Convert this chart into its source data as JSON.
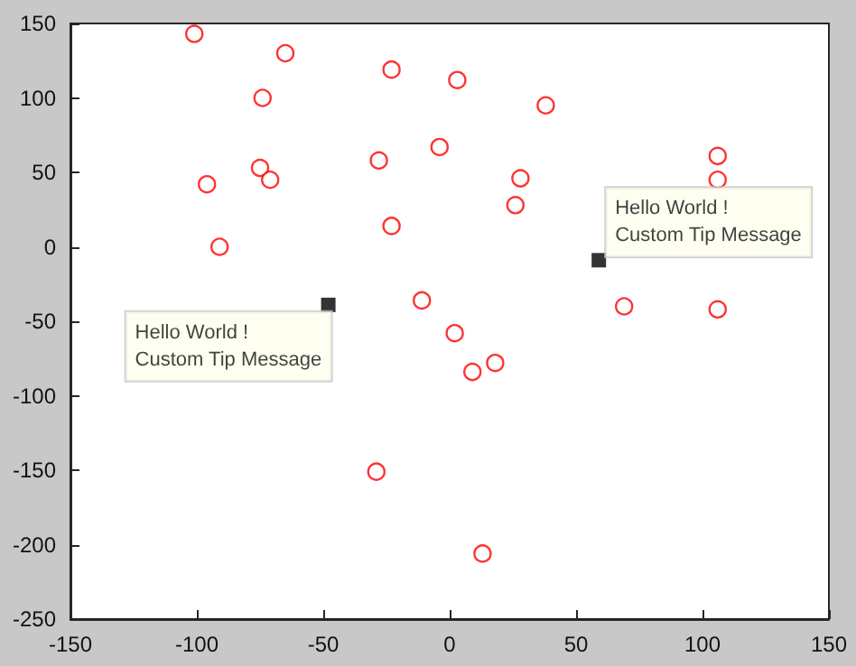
{
  "chart_data": {
    "type": "scatter",
    "series": [
      {
        "color": "#ff0000",
        "marker": "circle",
        "x": [
          -101,
          -65,
          -23,
          3,
          38,
          -74,
          -4,
          -28,
          -75,
          -96,
          -71,
          28,
          26,
          106,
          106,
          -23,
          -91,
          -11,
          69,
          106,
          2,
          9,
          18,
          -29,
          13
        ],
        "values": [
          143,
          130,
          119,
          112,
          95,
          100,
          67,
          58,
          53,
          42,
          45,
          46,
          28,
          61,
          45,
          14,
          0,
          -36,
          -40,
          -42,
          -58,
          -84,
          -78,
          -151,
          -206
        ]
      },
      {
        "color": "#000000",
        "marker": "square",
        "x": [
          -48,
          59
        ],
        "values": [
          -39,
          -9
        ]
      }
    ],
    "annotations": [
      {
        "text": "Hello World !\nCustom Tip Message",
        "x": -48,
        "y": -39
      },
      {
        "text": "Hello World !\nCustom Tip Message",
        "x": 59,
        "y": -9
      }
    ],
    "xlim": [
      -150,
      150
    ],
    "xticks": [
      -150,
      -100,
      -50,
      0,
      50,
      100,
      150
    ],
    "ylim": [
      -250,
      150
    ],
    "yticks": [
      -250,
      -200,
      -150,
      -100,
      -50,
      0,
      50,
      100,
      150
    ],
    "grid": false
  }
}
